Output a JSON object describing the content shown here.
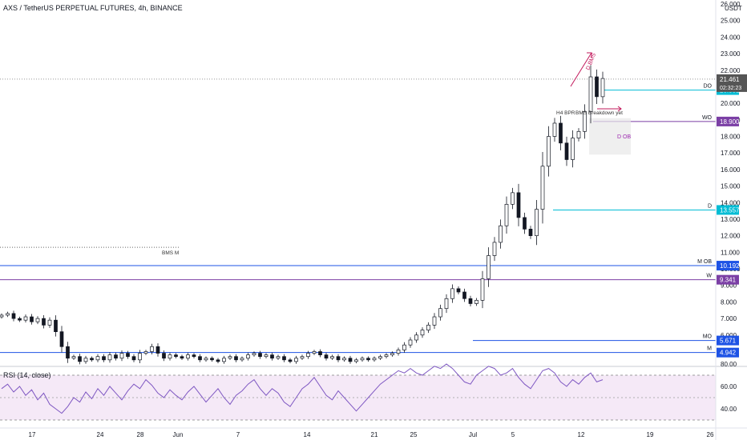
{
  "header": {
    "symbol": "AXS / TetherUS PERPETUAL FUTURES, 4h, BINANCE",
    "currency": "USDT"
  },
  "rsi": {
    "label": "RSI (14, close)",
    "ticks": [
      80.0,
      60.0,
      40.0
    ],
    "upper_band": 70,
    "lower_band": 30,
    "mid": 50
  },
  "chart_data": {
    "type": "candlestick",
    "price_ticks": [
      "26.000",
      "25.000",
      "24.000",
      "23.000",
      "22.000",
      "21.000",
      "20.000",
      "19.000",
      "18.000",
      "17.000",
      "16.000",
      "15.000",
      "14.000",
      "13.000",
      "12.000",
      "11.000",
      "10.000",
      "9.000",
      "8.000",
      "7.000",
      "6.000",
      "5.000"
    ],
    "ylim": [
      4.5,
      26.3
    ],
    "x_ticks": [
      "17",
      "24",
      "28",
      "Jun",
      "7",
      "14",
      "21",
      "25",
      "Jul",
      "5",
      "12",
      "19",
      "26"
    ],
    "close_series": [
      7.2,
      7.3,
      7.0,
      6.9,
      7.1,
      6.8,
      7.0,
      6.6,
      6.9,
      6.2,
      5.3,
      4.6,
      4.7,
      4.4,
      4.6,
      4.5,
      4.7,
      4.5,
      4.8,
      4.6,
      4.9,
      4.7,
      4.5,
      4.9,
      5.0,
      5.3,
      4.9,
      4.6,
      4.8,
      4.7,
      4.6,
      4.8,
      4.7,
      4.5,
      4.6,
      4.5,
      4.4,
      4.6,
      4.7,
      4.5,
      4.6,
      4.8,
      4.9,
      4.7,
      4.8,
      4.6,
      4.7,
      4.5,
      4.4,
      4.6,
      4.7,
      4.9,
      5.0,
      4.8,
      4.6,
      4.7,
      4.5,
      4.6,
      4.4,
      4.5,
      4.6,
      4.5,
      4.6,
      4.7,
      4.8,
      4.9,
      5.1,
      5.4,
      5.7,
      6.0,
      6.3,
      6.6,
      7.1,
      7.6,
      8.2,
      8.8,
      8.6,
      8.2,
      7.9,
      8.1,
      9.4,
      10.8,
      11.6,
      12.6,
      13.9,
      14.6,
      13.1,
      12.4,
      12.0,
      13.6,
      16.2,
      18.0,
      18.8,
      17.6,
      16.6,
      17.9,
      18.3,
      19.5,
      21.6,
      20.4,
      21.5
    ],
    "horizontal_levels": [
      {
        "label": "DO",
        "value": "20.801",
        "price": 20.801,
        "color": "#00bcd4"
      },
      {
        "label": "WO",
        "value": "18.900",
        "price": 18.9,
        "color": "#7b3fa5"
      },
      {
        "label": "D",
        "value": "13.557",
        "price": 13.557,
        "color": "#00bcd4"
      },
      {
        "label": "M OB",
        "value": "10.192",
        "price": 10.192,
        "color": "#1e53e5"
      },
      {
        "label": "W",
        "value": "9.341",
        "price": 9.341,
        "color": "#7b3fa5"
      },
      {
        "label": "MO",
        "value": "5.671",
        "price": 5.671,
        "color": "#1e53e5"
      },
      {
        "label": "M",
        "value": "4.942",
        "price": 4.942,
        "color": "#1e53e5"
      }
    ],
    "last_price": {
      "value": "21.461",
      "countdown": "02:32:23",
      "price": 21.461
    },
    "annotations": [
      {
        "text": "D BMS",
        "color": "#c2185b"
      },
      {
        "text": "H4 BPR",
        "color": "#333333"
      },
      {
        "text": "BMS Breakdown yet",
        "color": "#333333"
      },
      {
        "text": "D OB",
        "color": "#9c27b0"
      },
      {
        "text": "BMS M",
        "color": "#333333"
      }
    ],
    "rsi_series": [
      58,
      62,
      55,
      60,
      52,
      57,
      48,
      54,
      44,
      40,
      36,
      42,
      50,
      46,
      55,
      49,
      58,
      52,
      60,
      54,
      48,
      56,
      62,
      58,
      66,
      61,
      54,
      50,
      57,
      52,
      48,
      55,
      60,
      53,
      46,
      52,
      58,
      50,
      44,
      52,
      56,
      62,
      66,
      58,
      52,
      58,
      54,
      46,
      42,
      50,
      58,
      62,
      68,
      60,
      52,
      48,
      56,
      50,
      44,
      38,
      44,
      50,
      56,
      62,
      66,
      70,
      74,
      72,
      76,
      72,
      70,
      74,
      78,
      76,
      80,
      76,
      70,
      64,
      62,
      70,
      74,
      78,
      76,
      70,
      72,
      76,
      68,
      62,
      58,
      66,
      74,
      76,
      72,
      64,
      60,
      66,
      62,
      68,
      72,
      64,
      66
    ]
  }
}
